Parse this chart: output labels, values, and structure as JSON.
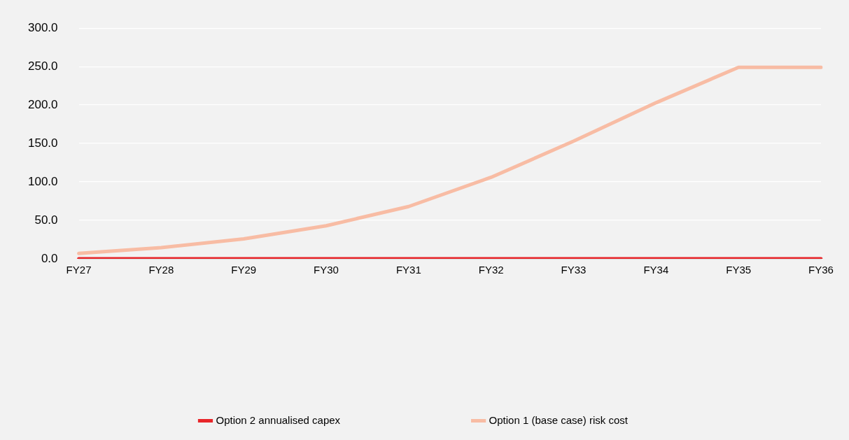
{
  "chart_data": {
    "type": "line",
    "categories": [
      "FY27",
      "FY28",
      "FY29",
      "FY30",
      "FY31",
      "FY32",
      "FY33",
      "FY34",
      "FY35",
      "FY36"
    ],
    "series": [
      {
        "name": "Option 2 annualised capex",
        "color": "#e8262a",
        "values": [
          0,
          0,
          0,
          0,
          0,
          0,
          0,
          0,
          0,
          0
        ]
      },
      {
        "name": "Option 1 (base case) risk cost",
        "color": "#f8bca4",
        "values": [
          7,
          14.5,
          26,
          43,
          68,
          106,
          153,
          203,
          249,
          249
        ]
      }
    ],
    "ylim": [
      0,
      300
    ],
    "yticks": [
      {
        "value": 0,
        "label": "0.0"
      },
      {
        "value": 50,
        "label": "50.0"
      },
      {
        "value": 100,
        "label": "100.0"
      },
      {
        "value": 150,
        "label": "150.0"
      },
      {
        "value": 200,
        "label": "200.0"
      },
      {
        "value": 250,
        "label": "250.0"
      },
      {
        "value": 300,
        "label": "300.0"
      }
    ],
    "grid": "y",
    "legend": "bottom",
    "marker": "none",
    "line_style": "solid"
  }
}
